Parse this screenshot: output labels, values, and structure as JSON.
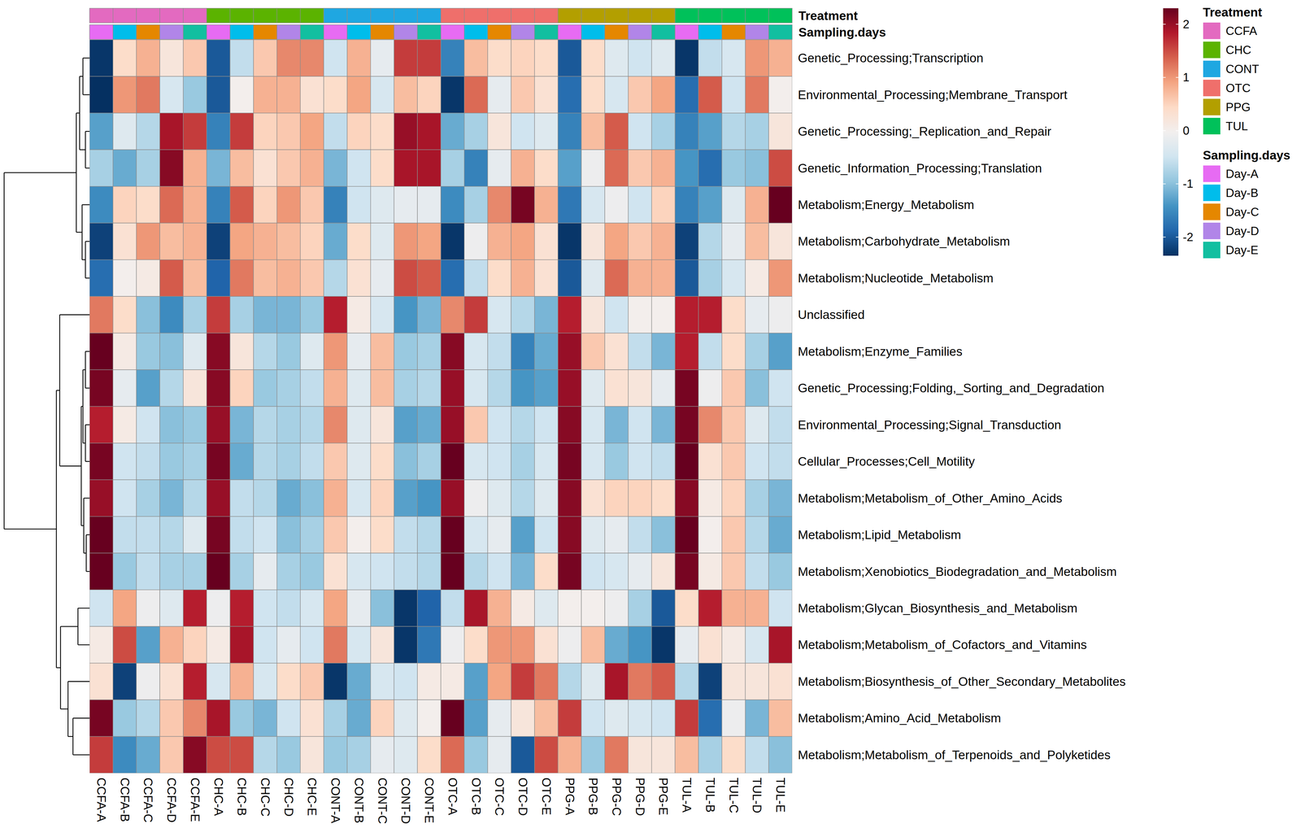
{
  "chart_data": {
    "type": "heatmap",
    "rows": [
      "Genetic_Processing;Transcription",
      "Environmental_Processing;Membrane_Transport",
      "Genetic_Processing;_Replication_and_Repair",
      "Genetic_Information_Processing;Translation",
      "Metabolism;Energy_Metabolism",
      "Metabolism;Carbohydrate_Metabolism",
      "Metabolism;Nucleotide_Metabolism",
      "Unclassified",
      "Metabolism;Enzyme_Families",
      "Genetic_Processing;Folding,_Sorting_and_Degradation",
      "Environmental_Processing;Signal_Transduction",
      "Cellular_Processes;Cell_Motility",
      "Metabolism;Metabolism_of_Other_Amino_Acids",
      "Metabolism;Lipid_Metabolism",
      "Metabolism;Xenobiotics_Biodegradation_and_Metabolism",
      "Metabolism;Glycan_Biosynthesis_and_Metabolism",
      "Metabolism;Metabolism_of_Cofactors_and_Vitamins",
      "Metabolism;Biosynthesis_of_Other_Secondary_Metabolites",
      "Metabolism;Amino_Acid_Metabolism",
      "Metabolism;Metabolism_of_Terpenoids_and_Polyketides"
    ],
    "columns": [
      "CCFA-A",
      "CCFA-B",
      "CCFA-C",
      "CCFA-D",
      "CCFA-E",
      "CHC-A",
      "CHC-B",
      "CHC-C",
      "CHC-D",
      "CHC-E",
      "CONT-A",
      "CONT-B",
      "CONT-C",
      "CONT-D",
      "CONT-E",
      "OTC-A",
      "OTC-B",
      "OTC-C",
      "OTC-D",
      "OTC-E",
      "PPG-A",
      "PPG-B",
      "PPG-C",
      "PPG-D",
      "PPG-E",
      "TUL-A",
      "TUL-B",
      "TUL-C",
      "TUL-D",
      "TUL-E"
    ],
    "values": [
      [
        -2.3,
        0.4,
        0.8,
        0.2,
        0.6,
        -2.0,
        -0.6,
        0.6,
        1.1,
        1.1,
        -0.5,
        0.8,
        -0.2,
        1.6,
        1.6,
        -1.6,
        0.7,
        0.4,
        0.5,
        0.4,
        -2.0,
        0.4,
        -0.3,
        -0.5,
        -0.3,
        -2.3,
        -0.6,
        -0.4,
        1.0,
        0.8
      ],
      [
        -2.35,
        1.0,
        1.2,
        -0.4,
        -0.9,
        -2.0,
        0.0,
        0.8,
        0.8,
        0.3,
        0.4,
        0.9,
        -0.4,
        0.7,
        0.5,
        -2.3,
        1.3,
        -0.2,
        0.6,
        0.3,
        -1.8,
        0.4,
        -0.4,
        0.6,
        0.9,
        -1.8,
        1.4,
        -0.5,
        1.2,
        0.0
      ],
      [
        -1.3,
        -0.3,
        -0.7,
        1.9,
        1.6,
        -1.6,
        1.6,
        0.5,
        0.6,
        0.9,
        -0.6,
        0.5,
        0.4,
        2.0,
        1.9,
        -1.2,
        -0.8,
        0.2,
        -0.5,
        -0.3,
        -1.6,
        0.7,
        1.4,
        -0.5,
        -0.8,
        -1.6,
        -1.3,
        -0.7,
        -0.8,
        0.2
      ],
      [
        -0.8,
        -1.2,
        -0.8,
        2.1,
        0.8,
        -1.1,
        0.7,
        0.3,
        0.6,
        0.8,
        -1.1,
        -0.5,
        0.4,
        1.9,
        1.9,
        -0.8,
        -1.6,
        -0.2,
        0.8,
        0.4,
        -1.3,
        -0.1,
        1.3,
        0.6,
        0.8,
        -1.4,
        -1.8,
        -0.9,
        -1.0,
        1.5
      ],
      [
        -1.5,
        0.5,
        0.4,
        1.3,
        0.8,
        -1.6,
        1.4,
        0.5,
        1.0,
        0.6,
        -1.6,
        -0.5,
        -0.3,
        -0.2,
        -0.2,
        -1.5,
        -0.8,
        1.1,
        2.2,
        0.8,
        -1.7,
        -0.4,
        -0.1,
        -0.5,
        0.5,
        -1.6,
        -1.3,
        -0.3,
        0.8,
        2.3
      ],
      [
        -2.2,
        0.3,
        1.0,
        0.7,
        0.8,
        -2.2,
        0.9,
        0.8,
        0.7,
        0.5,
        -1.2,
        0.4,
        -0.3,
        1.0,
        0.9,
        -2.3,
        -0.1,
        0.8,
        0.9,
        0.3,
        -2.3,
        0.2,
        0.9,
        0.6,
        0.8,
        -2.2,
        -0.7,
        -0.2,
        0.7,
        0.2
      ],
      [
        -1.8,
        0.0,
        0.1,
        1.4,
        0.7,
        -1.9,
        1.2,
        0.7,
        0.8,
        0.6,
        -0.7,
        0.3,
        -0.2,
        1.5,
        1.4,
        -1.8,
        -0.6,
        0.4,
        0.8,
        0.3,
        -2.0,
        -0.3,
        1.3,
        0.8,
        0.8,
        -2.0,
        -0.8,
        -0.4,
        0.1,
        1.0
      ],
      [
        1.2,
        0.4,
        -1.0,
        -1.5,
        -0.8,
        1.6,
        -0.8,
        -1.1,
        -1.1,
        -0.9,
        1.8,
        0.1,
        -0.4,
        -1.4,
        -1.1,
        1.1,
        1.6,
        -0.4,
        -0.7,
        -1.1,
        1.8,
        0.2,
        -0.5,
        0.0,
        0.0,
        1.8,
        1.8,
        0.4,
        -0.2,
        -0.1
      ],
      [
        2.3,
        0.1,
        -0.9,
        -1.0,
        -0.3,
        2.1,
        0.2,
        -0.7,
        -0.9,
        -0.3,
        1.0,
        -0.2,
        0.7,
        -0.9,
        -0.8,
        2.1,
        -0.4,
        -0.6,
        -1.6,
        -1.2,
        2.0,
        0.6,
        0.3,
        -0.6,
        -1.1,
        1.8,
        -0.6,
        0.4,
        -0.8,
        -1.3
      ],
      [
        2.2,
        -0.2,
        -1.3,
        -0.7,
        0.2,
        2.1,
        0.5,
        -0.9,
        -0.8,
        -0.6,
        0.8,
        -0.3,
        0.7,
        -0.8,
        -0.7,
        2.0,
        -0.4,
        -0.7,
        -1.4,
        -1.3,
        2.0,
        -0.3,
        0.3,
        0.2,
        -0.2,
        2.2,
        -0.1,
        0.6,
        -1.0,
        -0.5
      ],
      [
        1.8,
        0.1,
        -0.5,
        -1.0,
        -0.9,
        2.0,
        -1.1,
        -0.7,
        -0.8,
        -0.7,
        1.1,
        -0.3,
        0.2,
        -1.3,
        -1.2,
        2.0,
        0.6,
        -0.5,
        -0.7,
        -0.5,
        2.1,
        -0.4,
        -1.1,
        -0.5,
        -1.1,
        2.2,
        1.1,
        0.6,
        -0.3,
        -0.6
      ],
      [
        2.2,
        -0.5,
        -0.6,
        -0.9,
        -0.8,
        2.2,
        -1.2,
        -0.7,
        -0.8,
        -0.6,
        0.6,
        -0.3,
        0.4,
        -1.0,
        -0.8,
        2.3,
        -0.4,
        -0.5,
        -0.8,
        -0.4,
        2.2,
        -0.4,
        -0.9,
        -0.5,
        -0.6,
        2.3,
        0.3,
        0.6,
        -0.5,
        -0.6
      ],
      [
        2.0,
        -0.5,
        -0.8,
        -1.1,
        -0.7,
        2.0,
        -0.6,
        -0.7,
        -1.2,
        -1.0,
        0.8,
        -0.4,
        0.5,
        -1.3,
        -1.4,
        2.0,
        -0.1,
        -0.3,
        -0.7,
        -0.3,
        2.1,
        0.3,
        0.5,
        0.5,
        0.4,
        2.1,
        0.1,
        0.5,
        -0.8,
        -1.1
      ],
      [
        2.3,
        -0.6,
        -0.6,
        -0.7,
        -0.3,
        2.2,
        -0.6,
        -0.5,
        -1.0,
        -0.8,
        0.6,
        0.0,
        0.4,
        -0.6,
        -0.7,
        2.3,
        -0.4,
        -0.2,
        -1.3,
        -0.5,
        2.1,
        -0.3,
        -0.2,
        -0.6,
        -1.0,
        2.3,
        0.0,
        0.6,
        -0.7,
        -1.2
      ],
      [
        2.3,
        -0.9,
        -0.6,
        -0.8,
        -0.8,
        2.3,
        -0.8,
        -0.2,
        -0.8,
        -0.9,
        0.3,
        -0.4,
        -0.5,
        -0.6,
        -0.7,
        2.3,
        -0.7,
        -0.5,
        -1.1,
        0.4,
        2.2,
        -0.5,
        -0.4,
        -0.2,
        0.2,
        2.2,
        0.1,
        0.6,
        -0.6,
        -0.9
      ],
      [
        -0.5,
        0.9,
        -0.1,
        -0.3,
        1.8,
        -0.1,
        1.8,
        -0.5,
        -0.6,
        -0.4,
        0.9,
        -0.2,
        -1.0,
        -2.3,
        -1.9,
        -0.6,
        1.9,
        0.8,
        0.1,
        -0.3,
        0.0,
        0.0,
        -0.1,
        -0.8,
        -2.0,
        0.4,
        1.8,
        0.8,
        0.8,
        -0.5
      ],
      [
        0.1,
        1.5,
        -1.3,
        0.8,
        0.5,
        0.1,
        1.9,
        -0.5,
        -0.2,
        -0.5,
        1.2,
        -0.4,
        0.2,
        -2.3,
        -1.7,
        -0.1,
        0.4,
        1.0,
        1.0,
        0.3,
        -0.1,
        0.7,
        -1.2,
        -1.4,
        -2.3,
        -0.2,
        0.3,
        0.1,
        -0.4,
        1.9
      ],
      [
        0.3,
        -2.2,
        -0.1,
        0.3,
        1.8,
        -0.4,
        0.8,
        -0.4,
        0.4,
        0.6,
        -2.3,
        -1.2,
        -0.4,
        -0.5,
        0.1,
        0.1,
        -1.3,
        0.9,
        1.6,
        1.2,
        -0.7,
        -0.3,
        1.9,
        1.2,
        1.4,
        -0.7,
        -2.2,
        0.2,
        0.2,
        0.3
      ],
      [
        2.2,
        -0.9,
        -0.7,
        0.6,
        1.1,
        1.9,
        -0.9,
        -1.1,
        -0.5,
        0.3,
        -0.8,
        -1.2,
        0.5,
        -0.3,
        0.0,
        2.3,
        -1.3,
        -0.2,
        0.2,
        0.7,
        1.6,
        -0.5,
        -0.3,
        -0.4,
        -0.5,
        1.6,
        -1.8,
        -0.1,
        -1.1,
        0.7
      ],
      [
        1.6,
        -1.5,
        -1.2,
        0.6,
        2.1,
        1.5,
        1.5,
        -0.7,
        -0.9,
        0.2,
        -0.9,
        -0.8,
        -0.2,
        -0.3,
        0.4,
        1.3,
        -0.9,
        -0.2,
        -2.0,
        1.5,
        0.8,
        -0.9,
        1.2,
        0.2,
        0.2,
        0.7,
        -0.8,
        0.4,
        -0.6,
        -1.0
      ]
    ],
    "colorbar": {
      "range": [
        -2.35,
        2.3
      ],
      "ticks": [
        -2,
        -1,
        0,
        1,
        2
      ],
      "colors": [
        "#053061",
        "#2166AC",
        "#4393C3",
        "#92C5DE",
        "#D1E5F0",
        "#F2EFEE",
        "#FDDBC7",
        "#F4A582",
        "#D6604D",
        "#B2182B",
        "#67001F"
      ]
    },
    "column_annotations": [
      {
        "name": "Treatment",
        "values": [
          "CCFA",
          "CCFA",
          "CCFA",
          "CCFA",
          "CCFA",
          "CHC",
          "CHC",
          "CHC",
          "CHC",
          "CHC",
          "CONT",
          "CONT",
          "CONT",
          "CONT",
          "CONT",
          "OTC",
          "OTC",
          "OTC",
          "OTC",
          "OTC",
          "PPG",
          "PPG",
          "PPG",
          "PPG",
          "PPG",
          "TUL",
          "TUL",
          "TUL",
          "TUL",
          "TUL"
        ],
        "levels": [
          {
            "name": "CCFA",
            "color": "#E36AC0"
          },
          {
            "name": "CHC",
            "color": "#5BB300"
          },
          {
            "name": "CONT",
            "color": "#1FA7E1"
          },
          {
            "name": "OTC",
            "color": "#EF6F6B"
          },
          {
            "name": "PPG",
            "color": "#B39F00"
          },
          {
            "name": "TUL",
            "color": "#00C15A"
          }
        ]
      },
      {
        "name": "Sampling.days",
        "values": [
          "Day-A",
          "Day-B",
          "Day-C",
          "Day-D",
          "Day-E",
          "Day-A",
          "Day-B",
          "Day-C",
          "Day-D",
          "Day-E",
          "Day-A",
          "Day-B",
          "Day-C",
          "Day-D",
          "Day-E",
          "Day-A",
          "Day-B",
          "Day-C",
          "Day-D",
          "Day-E",
          "Day-A",
          "Day-B",
          "Day-C",
          "Day-D",
          "Day-E",
          "Day-A",
          "Day-B",
          "Day-C",
          "Day-D",
          "Day-E"
        ],
        "levels": [
          {
            "name": "Day-A",
            "color": "#E76BF3"
          },
          {
            "name": "Day-B",
            "color": "#00BDEB"
          },
          {
            "name": "Day-C",
            "color": "#E58700"
          },
          {
            "name": "Day-D",
            "color": "#B185E8"
          },
          {
            "name": "Day-E",
            "color": "#12BFA0"
          }
        ]
      }
    ],
    "row_dendrogram": {
      "height": 103,
      "children": [
        {
          "height": 16,
          "children": [
            {
              "height": 12,
              "children": [
                {
                  "height": 8,
                  "children": [
                    0,
                    1
                  ]
                },
                {
                  "height": 5,
                  "children": [
                    2,
                    3
                  ]
                }
              ]
            },
            {
              "height": 9,
              "children": [
                4,
                {
                  "height": 5,
                  "children": [
                    5,
                    6
                  ]
                }
              ]
            }
          ]
        },
        {
          "height": 40,
          "children": [
            {
              "height": 36,
              "children": [
                7,
                {
                  "height": 10,
                  "children": [
                    {
                      "height": 8,
                      "children": [
                        {
                          "height": 5,
                          "children": [
                            8,
                            9
                          ]
                        },
                        {
                          "height": 5,
                          "children": [
                            10,
                            11
                          ]
                        }
                      ]
                    },
                    {
                      "height": 7,
                      "children": [
                        12,
                        {
                          "height": 4,
                          "children": [
                            13,
                            14
                          ]
                        }
                      ]
                    }
                  ]
                }
              ]
            },
            {
              "height": 35,
              "children": [
                {
                  "height": 14,
                  "children": [
                    15,
                    16
                  ]
                },
                {
                  "height": 26,
                  "children": [
                    17,
                    {
                      "height": 20,
                      "children": [
                        18,
                        19
                      ]
                    }
                  ]
                }
              ]
            }
          ]
        }
      ]
    }
  }
}
